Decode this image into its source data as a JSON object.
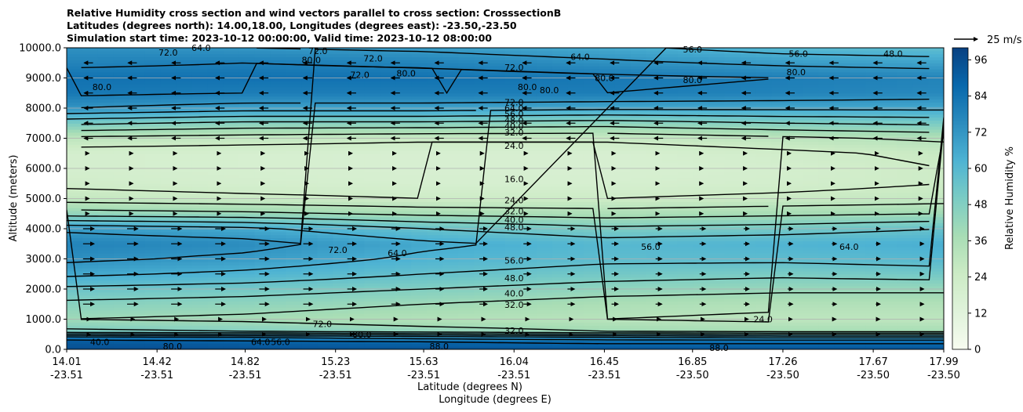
{
  "chart_data": {
    "type": "heatmap",
    "title_lines": [
      "Relative Humidity cross section and wind vectors parallel to cross section: CrosssectionB",
      "Latitudes (degrees north): 14.00,18.00, Longitudes (degrees east): -23.50,-23.50",
      "Simulation start time: 2023-10-12 00:00:00, Valid time: 2023-10-12 08:00:00"
    ],
    "ylabel": "Altitude (meters)",
    "xlabel_lat": "Latitude (degrees N)",
    "xlabel_lon": "Longitude (degrees E)",
    "ylim": [
      0,
      10000
    ],
    "y_ticks": [
      "0.0",
      "1000.0",
      "2000.0",
      "3000.0",
      "4000.0",
      "5000.0",
      "6000.0",
      "7000.0",
      "8000.0",
      "9000.0",
      "10000.0"
    ],
    "x_ticks": [
      {
        "lat": "14.01",
        "lon": "-23.51"
      },
      {
        "lat": "14.42",
        "lon": "-23.51"
      },
      {
        "lat": "14.82",
        "lon": "-23.51"
      },
      {
        "lat": "15.23",
        "lon": "-23.51"
      },
      {
        "lat": "15.63",
        "lon": "-23.51"
      },
      {
        "lat": "16.04",
        "lon": "-23.51"
      },
      {
        "lat": "16.45",
        "lon": "-23.51"
      },
      {
        "lat": "16.85",
        "lon": "-23.50"
      },
      {
        "lat": "17.26",
        "lon": "-23.50"
      },
      {
        "lat": "17.67",
        "lon": "-23.50"
      },
      {
        "lat": "17.99",
        "lon": "-23.50"
      }
    ],
    "grid": "horizontal",
    "colorbar": {
      "label": "Relative Humidity %",
      "ticks": [
        "0",
        "12",
        "24",
        "36",
        "48",
        "60",
        "72",
        "84",
        "96"
      ],
      "range": [
        0,
        100
      ],
      "colormap": [
        "#f7fcf0",
        "#e0f3db",
        "#ccebc5",
        "#a8ddb5",
        "#7bccc4",
        "#4eb3d3",
        "#2b8cbe",
        "#0868ac",
        "#084081"
      ]
    },
    "quiver_key": "25 m/s",
    "rh_profile": {
      "altitude_m": [
        0,
        250,
        400,
        600,
        1000,
        1500,
        2000,
        2500,
        3000,
        3500,
        4000,
        4500,
        5000,
        5500,
        6000,
        6500,
        7000,
        7500,
        8000,
        8500,
        9000,
        9500,
        10000
      ],
      "columns": [
        {
          "lat": 14.01,
          "rh": [
            96,
            92,
            82,
            50,
            40,
            46,
            54,
            66,
            74,
            78,
            70,
            44,
            28,
            22,
            20,
            20,
            30,
            50,
            72,
            82,
            84,
            78,
            74
          ]
        },
        {
          "lat": 14.82,
          "rh": [
            95,
            90,
            80,
            48,
            38,
            44,
            52,
            62,
            70,
            75,
            66,
            42,
            26,
            20,
            19,
            19,
            28,
            46,
            68,
            80,
            84,
            80,
            72
          ]
        },
        {
          "lat": 15.63,
          "rh": [
            94,
            88,
            76,
            44,
            34,
            40,
            48,
            56,
            62,
            66,
            56,
            38,
            24,
            19,
            18,
            18,
            26,
            46,
            68,
            80,
            84,
            78,
            70
          ]
        },
        {
          "lat": 16.45,
          "rh": [
            94,
            86,
            72,
            40,
            32,
            36,
            44,
            52,
            58,
            60,
            50,
            36,
            24,
            19,
            18,
            18,
            26,
            44,
            66,
            80,
            82,
            74,
            66
          ]
        },
        {
          "lat": 17.26,
          "rh": [
            94,
            86,
            70,
            38,
            30,
            34,
            42,
            50,
            58,
            62,
            52,
            38,
            26,
            21,
            20,
            22,
            30,
            48,
            66,
            78,
            80,
            70,
            60
          ]
        },
        {
          "lat": 17.99,
          "rh": [
            94,
            86,
            70,
            38,
            30,
            34,
            42,
            52,
            60,
            64,
            56,
            40,
            28,
            24,
            24,
            26,
            34,
            50,
            66,
            76,
            78,
            68,
            58
          ]
        }
      ]
    },
    "contour_levels": [
      "16.0",
      "24.0",
      "32.0",
      "40.0",
      "48.0",
      "56.0",
      "64.0",
      "72.0",
      "80.0",
      "88.0"
    ],
    "contour_labels": [
      {
        "text": "72.0",
        "lat": 16.04,
        "alt": 8200
      },
      {
        "text": "64.0",
        "lat": 16.04,
        "alt": 8000
      },
      {
        "text": "56.0",
        "lat": 16.04,
        "alt": 7800
      },
      {
        "text": "48.0",
        "lat": 16.04,
        "alt": 7600
      },
      {
        "text": "40.0",
        "lat": 16.04,
        "alt": 7400
      },
      {
        "text": "32.0",
        "lat": 16.04,
        "alt": 7200
      },
      {
        "text": "24.0",
        "lat": 16.04,
        "alt": 6750
      },
      {
        "text": "16.0",
        "lat": 16.04,
        "alt": 5650
      },
      {
        "text": "24.0",
        "lat": 16.04,
        "alt": 4950
      },
      {
        "text": "32.0",
        "lat": 16.04,
        "alt": 4580
      },
      {
        "text": "40.0",
        "lat": 16.04,
        "alt": 4300
      },
      {
        "text": "48.0",
        "lat": 16.04,
        "alt": 4050
      },
      {
        "text": "56.0",
        "lat": 16.04,
        "alt": 2950
      },
      {
        "text": "48.0",
        "lat": 16.04,
        "alt": 2360
      },
      {
        "text": "40.0",
        "lat": 16.04,
        "alt": 1860
      },
      {
        "text": "32.0",
        "lat": 16.04,
        "alt": 1480
      },
      {
        "text": "32.0",
        "lat": 16.04,
        "alt": 620
      },
      {
        "text": "72.0",
        "lat": 16.04,
        "alt": 9350
      },
      {
        "text": "64.0",
        "lat": 17.56,
        "alt": 3400
      },
      {
        "text": "56.0",
        "lat": 17.33,
        "alt": 9800
      },
      {
        "text": "48.0",
        "lat": 17.76,
        "alt": 9800
      },
      {
        "text": "56.0",
        "lat": 16.85,
        "alt": 9950
      },
      {
        "text": "80.0",
        "lat": 16.85,
        "alt": 8930
      },
      {
        "text": "80.0",
        "lat": 17.32,
        "alt": 9200
      },
      {
        "text": "80.0",
        "lat": 16.45,
        "alt": 9000
      },
      {
        "text": "80.0",
        "lat": 16.2,
        "alt": 8600
      },
      {
        "text": "80.0",
        "lat": 16.1,
        "alt": 8700
      },
      {
        "text": "64.0",
        "lat": 16.34,
        "alt": 9700
      },
      {
        "text": "80.0",
        "lat": 15.12,
        "alt": 9600
      },
      {
        "text": "72.0",
        "lat": 15.15,
        "alt": 9900
      },
      {
        "text": "72.0",
        "lat": 14.47,
        "alt": 9850
      },
      {
        "text": "64.0",
        "lat": 14.62,
        "alt": 10000
      },
      {
        "text": "80.0",
        "lat": 14.17,
        "alt": 8700
      },
      {
        "text": "72.0",
        "lat": 15.4,
        "alt": 9650
      },
      {
        "text": "72.0",
        "lat": 15.34,
        "alt": 9100
      },
      {
        "text": "80.0",
        "lat": 15.55,
        "alt": 9150
      },
      {
        "text": "72.0",
        "lat": 15.24,
        "alt": 3300
      },
      {
        "text": "64.0",
        "lat": 15.51,
        "alt": 3200
      },
      {
        "text": "56.0",
        "lat": 16.66,
        "alt": 3400
      },
      {
        "text": "24.0",
        "lat": 17.17,
        "alt": 1000
      },
      {
        "text": "88.0",
        "lat": 16.97,
        "alt": 50
      },
      {
        "text": "72.0",
        "lat": 15.17,
        "alt": 850
      },
      {
        "text": "40.0",
        "lat": 14.16,
        "alt": 250
      },
      {
        "text": "80.0",
        "lat": 14.49,
        "alt": 100
      },
      {
        "text": "64.0",
        "lat": 14.89,
        "alt": 250
      },
      {
        "text": "56.0",
        "lat": 14.98,
        "alt": 250
      },
      {
        "text": "80.0",
        "lat": 15.35,
        "alt": 500
      },
      {
        "text": "88.0",
        "lat": 15.7,
        "alt": 100
      }
    ]
  }
}
